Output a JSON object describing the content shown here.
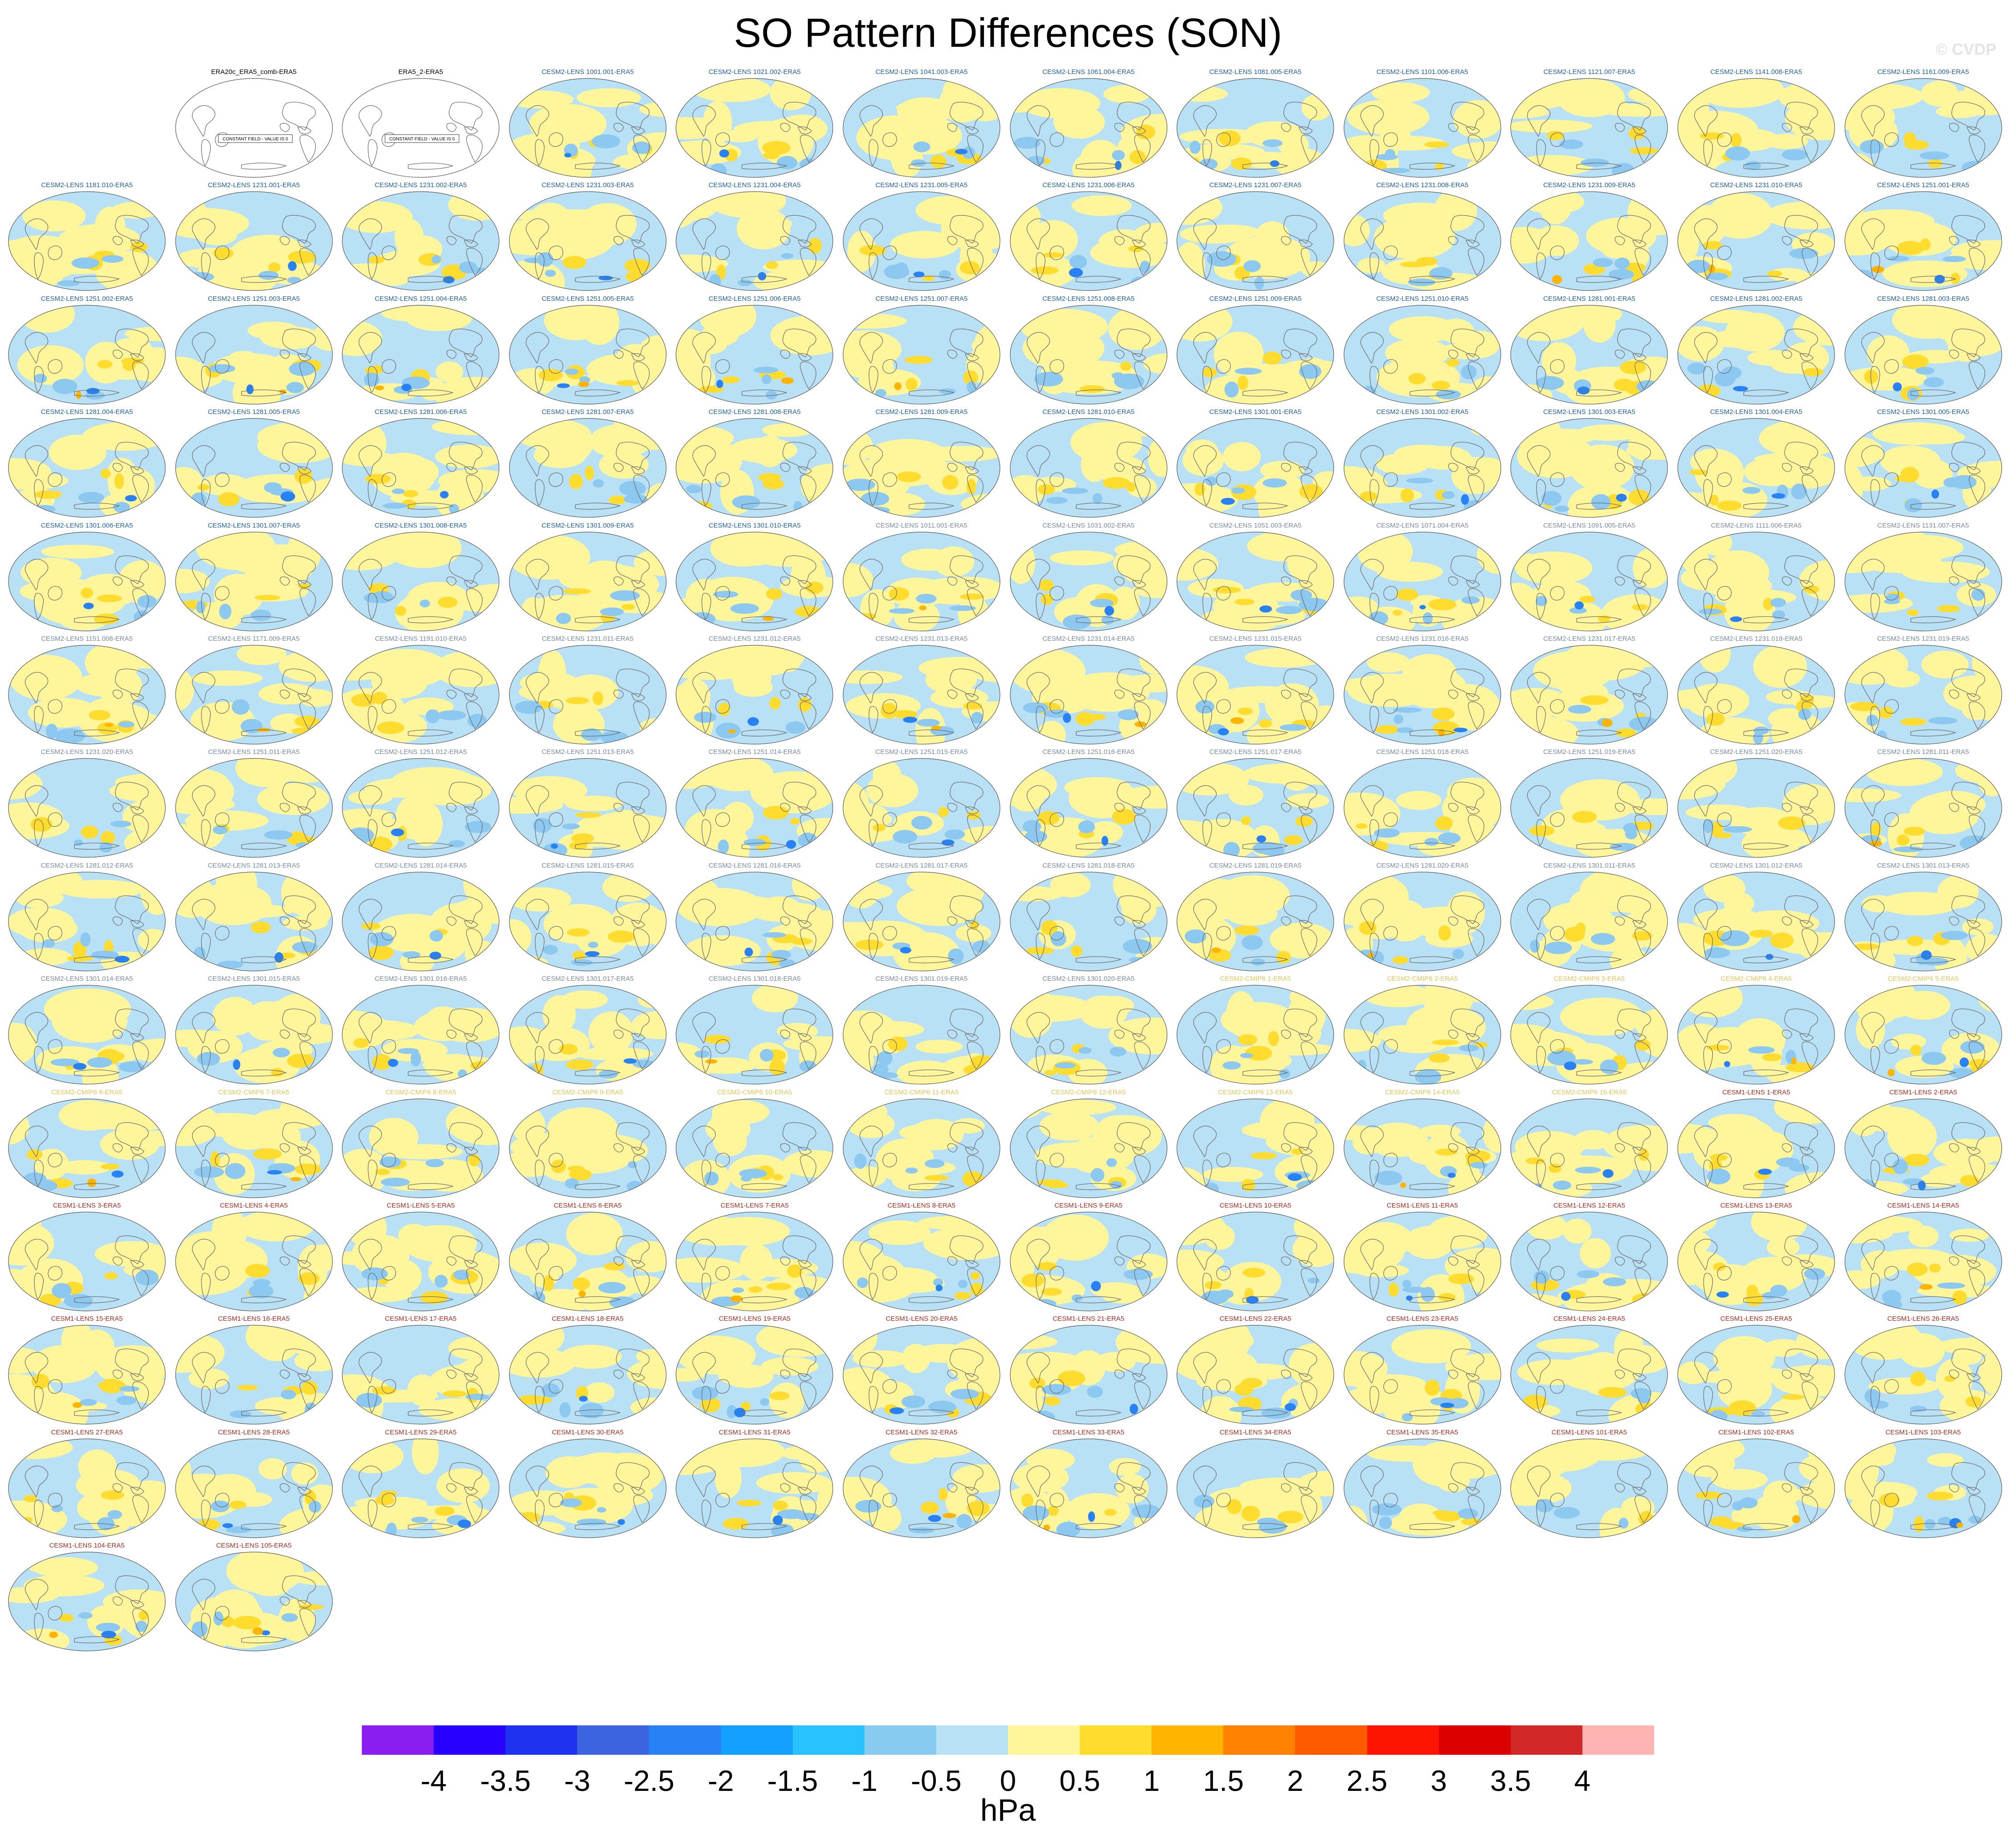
{
  "title": "SO Pattern Differences (SON)",
  "watermark": "© CVDP",
  "units": "hPa",
  "colorbar": {
    "colors": [
      "#8a1df0",
      "#2800ff",
      "#1e32ef",
      "#3c64e1",
      "#2882f5",
      "#14a0ff",
      "#28c3ff",
      "#87ccf0",
      "#b9e1f5",
      "#fff59b",
      "#ffdc2d",
      "#ffb400",
      "#ff8200",
      "#ff5a00",
      "#ff1400",
      "#dc0000",
      "#d22828",
      "#ffb4b4"
    ],
    "labels": [
      "-4",
      "-3.5",
      "-3",
      "-2.5",
      "-2",
      "-1.5",
      "-1",
      "-0.5",
      "0",
      "0.5",
      "1",
      "1.5",
      "2",
      "2.5",
      "3",
      "3.5",
      "4"
    ]
  },
  "constant_field_text": "CONSTANT FIELD - VALUE IS 0",
  "palette": {
    "neg": "#b9e1f5",
    "pos": "#fff59b",
    "strong_pos": "#ffdc2d",
    "strong_neg": "#8cc8f0",
    "extreme_neg": "#2882f5",
    "extreme_pos": "#ffb400"
  },
  "title_colors": {
    "obs": "#000000",
    "CESM2-LENS": "#1f5fa8",
    "CESM2-LENS-smbb": "#7a8aa0",
    "CESM2-CMIP6": "#e6c455",
    "CESM1-LENS": "#b02a1c"
  },
  "panels": [
    {
      "label": "ERA20c_ERA5_comb-ERA5",
      "group": "obs",
      "blank": true
    },
    {
      "label": "ERA5_2-ERA5",
      "group": "obs",
      "blank": true
    },
    {
      "label": "CESM2-LENS 1001.001-ERA5",
      "group": "CESM2-LENS"
    },
    {
      "label": "CESM2-LENS 1021.002-ERA5",
      "group": "CESM2-LENS"
    },
    {
      "label": "CESM2-LENS 1041.003-ERA5",
      "group": "CESM2-LENS"
    },
    {
      "label": "CESM2-LENS 1061.004-ERA5",
      "group": "CESM2-LENS"
    },
    {
      "label": "CESM2-LENS 1081.005-ERA5",
      "group": "CESM2-LENS"
    },
    {
      "label": "CESM2-LENS 1101.006-ERA5",
      "group": "CESM2-LENS"
    },
    {
      "label": "CESM2-LENS 1121.007-ERA5",
      "group": "CESM2-LENS"
    },
    {
      "label": "CESM2-LENS 1141.008-ERA5",
      "group": "CESM2-LENS"
    },
    {
      "label": "CESM2-LENS 1161.009-ERA5",
      "group": "CESM2-LENS"
    },
    {
      "label": "CESM2-LENS 1181.010-ERA5",
      "group": "CESM2-LENS"
    },
    {
      "label": "CESM2-LENS 1231.001-ERA5",
      "group": "CESM2-LENS"
    },
    {
      "label": "CESM2-LENS 1231.002-ERA5",
      "group": "CESM2-LENS"
    },
    {
      "label": "CESM2-LENS 1231.003-ERA5",
      "group": "CESM2-LENS"
    },
    {
      "label": "CESM2-LENS 1231.004-ERA5",
      "group": "CESM2-LENS"
    },
    {
      "label": "CESM2-LENS 1231.005-ERA5",
      "group": "CESM2-LENS"
    },
    {
      "label": "CESM2-LENS 1231.006-ERA5",
      "group": "CESM2-LENS"
    },
    {
      "label": "CESM2-LENS 1231.007-ERA5",
      "group": "CESM2-LENS"
    },
    {
      "label": "CESM2-LENS 1231.008-ERA5",
      "group": "CESM2-LENS"
    },
    {
      "label": "CESM2-LENS 1231.009-ERA5",
      "group": "CESM2-LENS"
    },
    {
      "label": "CESM2-LENS 1231.010-ERA5",
      "group": "CESM2-LENS"
    },
    {
      "label": "CESM2-LENS 1251.001-ERA5",
      "group": "CESM2-LENS"
    },
    {
      "label": "CESM2-LENS 1251.002-ERA5",
      "group": "CESM2-LENS"
    },
    {
      "label": "CESM2-LENS 1251.003-ERA5",
      "group": "CESM2-LENS"
    },
    {
      "label": "CESM2-LENS 1251.004-ERA5",
      "group": "CESM2-LENS"
    },
    {
      "label": "CESM2-LENS 1251.005-ERA5",
      "group": "CESM2-LENS"
    },
    {
      "label": "CESM2-LENS 1251.006-ERA5",
      "group": "CESM2-LENS"
    },
    {
      "label": "CESM2-LENS 1251.007-ERA5",
      "group": "CESM2-LENS"
    },
    {
      "label": "CESM2-LENS 1251.008-ERA5",
      "group": "CESM2-LENS"
    },
    {
      "label": "CESM2-LENS 1251.009-ERA5",
      "group": "CESM2-LENS"
    },
    {
      "label": "CESM2-LENS 1251.010-ERA5",
      "group": "CESM2-LENS"
    },
    {
      "label": "CESM2-LENS 1281.001-ERA5",
      "group": "CESM2-LENS"
    },
    {
      "label": "CESM2-LENS 1281.002-ERA5",
      "group": "CESM2-LENS"
    },
    {
      "label": "CESM2-LENS 1281.003-ERA5",
      "group": "CESM2-LENS"
    },
    {
      "label": "CESM2-LENS 1281.004-ERA5",
      "group": "CESM2-LENS"
    },
    {
      "label": "CESM2-LENS 1281.005-ERA5",
      "group": "CESM2-LENS"
    },
    {
      "label": "CESM2-LENS 1281.006-ERA5",
      "group": "CESM2-LENS"
    },
    {
      "label": "CESM2-LENS 1281.007-ERA5",
      "group": "CESM2-LENS"
    },
    {
      "label": "CESM2-LENS 1281.008-ERA5",
      "group": "CESM2-LENS"
    },
    {
      "label": "CESM2-LENS 1281.009-ERA5",
      "group": "CESM2-LENS"
    },
    {
      "label": "CESM2-LENS 1281.010-ERA5",
      "group": "CESM2-LENS"
    },
    {
      "label": "CESM2-LENS 1301.001-ERA5",
      "group": "CESM2-LENS"
    },
    {
      "label": "CESM2-LENS 1301.002-ERA5",
      "group": "CESM2-LENS"
    },
    {
      "label": "CESM2-LENS 1301.003-ERA5",
      "group": "CESM2-LENS"
    },
    {
      "label": "CESM2-LENS 1301.004-ERA5",
      "group": "CESM2-LENS"
    },
    {
      "label": "CESM2-LENS 1301.005-ERA5",
      "group": "CESM2-LENS"
    },
    {
      "label": "CESM2-LENS 1301.006-ERA5",
      "group": "CESM2-LENS"
    },
    {
      "label": "CESM2-LENS 1301.007-ERA5",
      "group": "CESM2-LENS"
    },
    {
      "label": "CESM2-LENS 1301.008-ERA5",
      "group": "CESM2-LENS"
    },
    {
      "label": "CESM2-LENS 1301.009-ERA5",
      "group": "CESM2-LENS"
    },
    {
      "label": "CESM2-LENS 1301.010-ERA5",
      "group": "CESM2-LENS"
    },
    {
      "label": "CESM2-LENS 1011.001-ERA5",
      "group": "CESM2-LENS-smbb"
    },
    {
      "label": "CESM2-LENS 1031.002-ERA5",
      "group": "CESM2-LENS-smbb"
    },
    {
      "label": "CESM2-LENS 1051.003-ERA5",
      "group": "CESM2-LENS-smbb"
    },
    {
      "label": "CESM2-LENS 1071.004-ERA5",
      "group": "CESM2-LENS-smbb"
    },
    {
      "label": "CESM2-LENS 1091.005-ERA5",
      "group": "CESM2-LENS-smbb"
    },
    {
      "label": "CESM2-LENS 1111.006-ERA5",
      "group": "CESM2-LENS-smbb"
    },
    {
      "label": "CESM2-LENS 1131.007-ERA5",
      "group": "CESM2-LENS-smbb"
    },
    {
      "label": "CESM2-LENS 1151.008-ERA5",
      "group": "CESM2-LENS-smbb"
    },
    {
      "label": "CESM2-LENS 1171.009-ERA5",
      "group": "CESM2-LENS-smbb"
    },
    {
      "label": "CESM2-LENS 1191.010-ERA5",
      "group": "CESM2-LENS-smbb"
    },
    {
      "label": "CESM2-LENS 1231.011-ERA5",
      "group": "CESM2-LENS-smbb"
    },
    {
      "label": "CESM2-LENS 1231.012-ERA5",
      "group": "CESM2-LENS-smbb"
    },
    {
      "label": "CESM2-LENS 1231.013-ERA5",
      "group": "CESM2-LENS-smbb"
    },
    {
      "label": "CESM2-LENS 1231.014-ERA5",
      "group": "CESM2-LENS-smbb"
    },
    {
      "label": "CESM2-LENS 1231.015-ERA5",
      "group": "CESM2-LENS-smbb"
    },
    {
      "label": "CESM2-LENS 1231.016-ERA5",
      "group": "CESM2-LENS-smbb"
    },
    {
      "label": "CESM2-LENS 1231.017-ERA5",
      "group": "CESM2-LENS-smbb"
    },
    {
      "label": "CESM2-LENS 1231.018-ERA5",
      "group": "CESM2-LENS-smbb"
    },
    {
      "label": "CESM2-LENS 1231.019-ERA5",
      "group": "CESM2-LENS-smbb"
    },
    {
      "label": "CESM2-LENS 1231.020-ERA5",
      "group": "CESM2-LENS-smbb"
    },
    {
      "label": "CESM2-LENS 1251.011-ERA5",
      "group": "CESM2-LENS-smbb"
    },
    {
      "label": "CESM2-LENS 1251.012-ERA5",
      "group": "CESM2-LENS-smbb"
    },
    {
      "label": "CESM2-LENS 1251.013-ERA5",
      "group": "CESM2-LENS-smbb"
    },
    {
      "label": "CESM2-LENS 1251.014-ERA5",
      "group": "CESM2-LENS-smbb"
    },
    {
      "label": "CESM2-LENS 1251.015-ERA5",
      "group": "CESM2-LENS-smbb"
    },
    {
      "label": "CESM2-LENS 1251.016-ERA5",
      "group": "CESM2-LENS-smbb"
    },
    {
      "label": "CESM2-LENS 1251.017-ERA5",
      "group": "CESM2-LENS-smbb"
    },
    {
      "label": "CESM2-LENS 1251.018-ERA5",
      "group": "CESM2-LENS-smbb"
    },
    {
      "label": "CESM2-LENS 1251.019-ERA5",
      "group": "CESM2-LENS-smbb"
    },
    {
      "label": "CESM2-LENS 1251.020-ERA5",
      "group": "CESM2-LENS-smbb"
    },
    {
      "label": "CESM2-LENS 1281.011-ERA5",
      "group": "CESM2-LENS-smbb"
    },
    {
      "label": "CESM2-LENS 1281.012-ERA5",
      "group": "CESM2-LENS-smbb"
    },
    {
      "label": "CESM2-LENS 1281.013-ERA5",
      "group": "CESM2-LENS-smbb"
    },
    {
      "label": "CESM2-LENS 1281.014-ERA5",
      "group": "CESM2-LENS-smbb"
    },
    {
      "label": "CESM2-LENS 1281.015-ERA5",
      "group": "CESM2-LENS-smbb"
    },
    {
      "label": "CESM2-LENS 1281.016-ERA5",
      "group": "CESM2-LENS-smbb"
    },
    {
      "label": "CESM2-LENS 1281.017-ERA5",
      "group": "CESM2-LENS-smbb"
    },
    {
      "label": "CESM2-LENS 1281.018-ERA5",
      "group": "CESM2-LENS-smbb"
    },
    {
      "label": "CESM2-LENS 1281.019-ERA5",
      "group": "CESM2-LENS-smbb"
    },
    {
      "label": "CESM2-LENS 1281.020-ERA5",
      "group": "CESM2-LENS-smbb"
    },
    {
      "label": "CESM2-LENS 1301.011-ERA5",
      "group": "CESM2-LENS-smbb"
    },
    {
      "label": "CESM2-LENS 1301.012-ERA5",
      "group": "CESM2-LENS-smbb"
    },
    {
      "label": "CESM2-LENS 1301.013-ERA5",
      "group": "CESM2-LENS-smbb"
    },
    {
      "label": "CESM2-LENS 1301.014-ERA5",
      "group": "CESM2-LENS-smbb"
    },
    {
      "label": "CESM2-LENS 1301.015-ERA5",
      "group": "CESM2-LENS-smbb"
    },
    {
      "label": "CESM2-LENS 1301.016-ERA5",
      "group": "CESM2-LENS-smbb"
    },
    {
      "label": "CESM2-LENS 1301.017-ERA5",
      "group": "CESM2-LENS-smbb"
    },
    {
      "label": "CESM2-LENS 1301.018-ERA5",
      "group": "CESM2-LENS-smbb"
    },
    {
      "label": "CESM2-LENS 1301.019-ERA5",
      "group": "CESM2-LENS-smbb"
    },
    {
      "label": "CESM2-LENS 1301.020-ERA5",
      "group": "CESM2-LENS-smbb"
    },
    {
      "label": "CESM2-CMIP6 1-ERA5",
      "group": "CESM2-CMIP6"
    },
    {
      "label": "CESM2-CMIP6 2-ERA5",
      "group": "CESM2-CMIP6"
    },
    {
      "label": "CESM2-CMIP6 3-ERA5",
      "group": "CESM2-CMIP6"
    },
    {
      "label": "CESM2-CMIP6 4-ERA5",
      "group": "CESM2-CMIP6"
    },
    {
      "label": "CESM2-CMIP6 5-ERA5",
      "group": "CESM2-CMIP6"
    },
    {
      "label": "CESM2-CMIP6 6-ERA5",
      "group": "CESM2-CMIP6"
    },
    {
      "label": "CESM2-CMIP6 7-ERA5",
      "group": "CESM2-CMIP6"
    },
    {
      "label": "CESM2-CMIP6 8-ERA5",
      "group": "CESM2-CMIP6"
    },
    {
      "label": "CESM2-CMIP6 9-ERA5",
      "group": "CESM2-CMIP6"
    },
    {
      "label": "CESM2-CMIP6 10-ERA5",
      "group": "CESM2-CMIP6"
    },
    {
      "label": "CESM2-CMIP6 11-ERA5",
      "group": "CESM2-CMIP6"
    },
    {
      "label": "CESM2-CMIP6 12-ERA5",
      "group": "CESM2-CMIP6"
    },
    {
      "label": "CESM2-CMIP6 13-ERA5",
      "group": "CESM2-CMIP6"
    },
    {
      "label": "CESM2-CMIP6 14-ERA5",
      "group": "CESM2-CMIP6"
    },
    {
      "label": "CESM2-CMIP6 15-ERA5",
      "group": "CESM2-CMIP6"
    },
    {
      "label": "CESM1-LENS 1-ERA5",
      "group": "CESM1-LENS"
    },
    {
      "label": "CESM1-LENS 2-ERA5",
      "group": "CESM1-LENS"
    },
    {
      "label": "CESM1-LENS 3-ERA5",
      "group": "CESM1-LENS"
    },
    {
      "label": "CESM1-LENS 4-ERA5",
      "group": "CESM1-LENS"
    },
    {
      "label": "CESM1-LENS 5-ERA5",
      "group": "CESM1-LENS"
    },
    {
      "label": "CESM1-LENS 6-ERA5",
      "group": "CESM1-LENS"
    },
    {
      "label": "CESM1-LENS 7-ERA5",
      "group": "CESM1-LENS"
    },
    {
      "label": "CESM1-LENS 8-ERA5",
      "group": "CESM1-LENS"
    },
    {
      "label": "CESM1-LENS 9-ERA5",
      "group": "CESM1-LENS"
    },
    {
      "label": "CESM1-LENS 10-ERA5",
      "group": "CESM1-LENS"
    },
    {
      "label": "CESM1-LENS 11-ERA5",
      "group": "CESM1-LENS"
    },
    {
      "label": "CESM1-LENS 12-ERA5",
      "group": "CESM1-LENS"
    },
    {
      "label": "CESM1-LENS 13-ERA5",
      "group": "CESM1-LENS"
    },
    {
      "label": "CESM1-LENS 14-ERA5",
      "group": "CESM1-LENS"
    },
    {
      "label": "CESM1-LENS 15-ERA5",
      "group": "CESM1-LENS"
    },
    {
      "label": "CESM1-LENS 16-ERA5",
      "group": "CESM1-LENS"
    },
    {
      "label": "CESM1-LENS 17-ERA5",
      "group": "CESM1-LENS"
    },
    {
      "label": "CESM1-LENS 18-ERA5",
      "group": "CESM1-LENS"
    },
    {
      "label": "CESM1-LENS 19-ERA5",
      "group": "CESM1-LENS"
    },
    {
      "label": "CESM1-LENS 20-ERA5",
      "group": "CESM1-LENS"
    },
    {
      "label": "CESM1-LENS 21-ERA5",
      "group": "CESM1-LENS"
    },
    {
      "label": "CESM1-LENS 22-ERA5",
      "group": "CESM1-LENS"
    },
    {
      "label": "CESM1-LENS 23-ERA5",
      "group": "CESM1-LENS"
    },
    {
      "label": "CESM1-LENS 24-ERA5",
      "group": "CESM1-LENS"
    },
    {
      "label": "CESM1-LENS 25-ERA5",
      "group": "CESM1-LENS"
    },
    {
      "label": "CESM1-LENS 26-ERA5",
      "group": "CESM1-LENS"
    },
    {
      "label": "CESM1-LENS 27-ERA5",
      "group": "CESM1-LENS"
    },
    {
      "label": "CESM1-LENS 28-ERA5",
      "group": "CESM1-LENS"
    },
    {
      "label": "CESM1-LENS 29-ERA5",
      "group": "CESM1-LENS"
    },
    {
      "label": "CESM1-LENS 30-ERA5",
      "group": "CESM1-LENS"
    },
    {
      "label": "CESM1-LENS 31-ERA5",
      "group": "CESM1-LENS"
    },
    {
      "label": "CESM1-LENS 32-ERA5",
      "group": "CESM1-LENS"
    },
    {
      "label": "CESM1-LENS 33-ERA5",
      "group": "CESM1-LENS"
    },
    {
      "label": "CESM1-LENS 34-ERA5",
      "group": "CESM1-LENS"
    },
    {
      "label": "CESM1-LENS 35-ERA5",
      "group": "CESM1-LENS"
    },
    {
      "label": "CESM1-LENS 101-ERA5",
      "group": "CESM1-LENS"
    },
    {
      "label": "CESM1-LENS 102-ERA5",
      "group": "CESM1-LENS"
    },
    {
      "label": "CESM1-LENS 103-ERA5",
      "group": "CESM1-LENS"
    },
    {
      "label": "CESM1-LENS 104-ERA5",
      "group": "CESM1-LENS"
    },
    {
      "label": "CESM1-LENS 105-ERA5",
      "group": "CESM1-LENS"
    }
  ]
}
